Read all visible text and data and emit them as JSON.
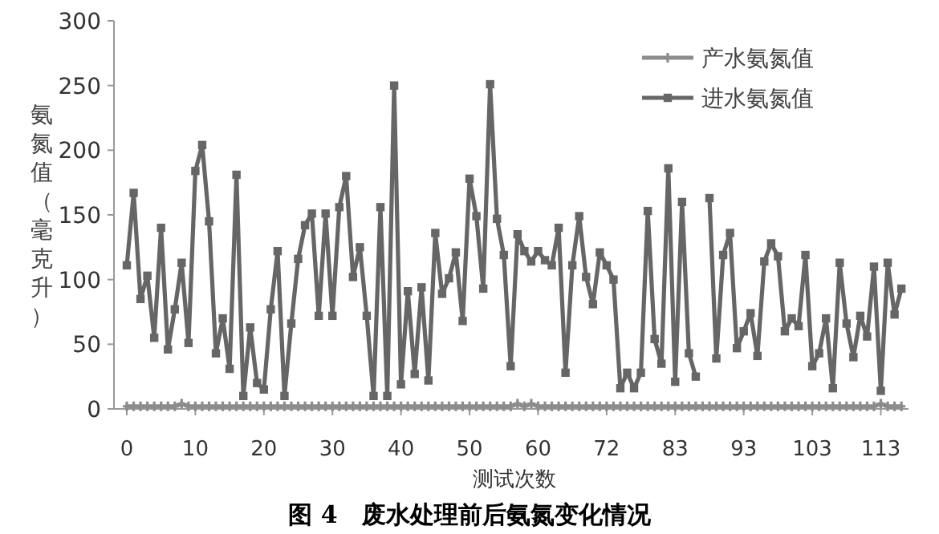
{
  "chart_data": {
    "type": "line",
    "title": "图 4　废水处理前后氨氮变化情况",
    "xlabel": "测试次数",
    "ylabel": "氨氮值（毫克升）",
    "categories": [
      "0",
      null,
      null,
      null,
      null,
      null,
      null,
      null,
      null,
      null,
      "10",
      null,
      null,
      null,
      null,
      null,
      null,
      null,
      null,
      null,
      "20",
      null,
      null,
      null,
      null,
      null,
      null,
      null,
      null,
      null,
      "30",
      null,
      null,
      null,
      null,
      null,
      null,
      null,
      null,
      null,
      "40",
      null,
      null,
      null,
      null,
      null,
      null,
      null,
      null,
      null,
      "50",
      null,
      null,
      null,
      null,
      null,
      null,
      null,
      null,
      null,
      "60",
      null,
      null,
      null,
      null,
      null,
      null,
      null,
      null,
      null,
      "72",
      null,
      null,
      null,
      null,
      null,
      null,
      null,
      null,
      null,
      "83",
      null,
      null,
      null,
      null,
      null,
      null,
      null,
      null,
      null,
      "93",
      null,
      null,
      null,
      null,
      null,
      null,
      null,
      null,
      null,
      "103",
      null,
      null,
      null,
      null,
      null,
      null,
      null,
      null,
      null,
      "113",
      null,
      null,
      null
    ],
    "series": [
      {
        "name": "产水氨氮值",
        "color": "#8c8c8c",
        "marker": "cross",
        "values": [
          2,
          2,
          2,
          2,
          2,
          2,
          2,
          2,
          4,
          2,
          2,
          2,
          2,
          2,
          2,
          2,
          2,
          2,
          2,
          2,
          2,
          2,
          2,
          2,
          2,
          2,
          2,
          2,
          2,
          2,
          2,
          2,
          2,
          2,
          2,
          2,
          2,
          2,
          2,
          2,
          2,
          2,
          2,
          2,
          2,
          2,
          2,
          2,
          2,
          2,
          2,
          2,
          2,
          2,
          2,
          2,
          2,
          4,
          2,
          4,
          2,
          2,
          2,
          2,
          2,
          2,
          2,
          2,
          2,
          2,
          2,
          2,
          2,
          2,
          2,
          2,
          2,
          2,
          2,
          2,
          2,
          2,
          2,
          2,
          2,
          2,
          2,
          2,
          2,
          2,
          2,
          2,
          2,
          2,
          2,
          2,
          2,
          2,
          2,
          2,
          2,
          2,
          2,
          2,
          2,
          2,
          2,
          2,
          2,
          2,
          4,
          2,
          2,
          2
        ]
      },
      {
        "name": "进水氨氮值",
        "color": "#666666",
        "marker": "square",
        "values": [
          111,
          167,
          85,
          103,
          55,
          140,
          46,
          77,
          113,
          51,
          184,
          204,
          145,
          43,
          70,
          31,
          181,
          10,
          63,
          20,
          15,
          77,
          122,
          10,
          66,
          116,
          142,
          151,
          72,
          151,
          72,
          156,
          180,
          102,
          125,
          72,
          10,
          156,
          10,
          250,
          19,
          91,
          27,
          94,
          22,
          136,
          89,
          101,
          121,
          68,
          178,
          149,
          93,
          251,
          147,
          119,
          33,
          135,
          122,
          114,
          122,
          115,
          111,
          140,
          28,
          111,
          149,
          102,
          81,
          121,
          111,
          100,
          16,
          28,
          16,
          28,
          153,
          54,
          35,
          186,
          21,
          160,
          43,
          25,
          null,
          163,
          39,
          119,
          136,
          47,
          60,
          74,
          41,
          114,
          128,
          118,
          60,
          70,
          64,
          119,
          33,
          43,
          70,
          16,
          113,
          66,
          40,
          72,
          56,
          110,
          14,
          113,
          73,
          93
        ]
      }
    ],
    "ylim": [
      0,
      300
    ],
    "yticks": [
      0,
      50,
      100,
      150,
      200,
      250,
      300
    ],
    "grid": false,
    "legend": "top right",
    "line_style": "solid"
  }
}
